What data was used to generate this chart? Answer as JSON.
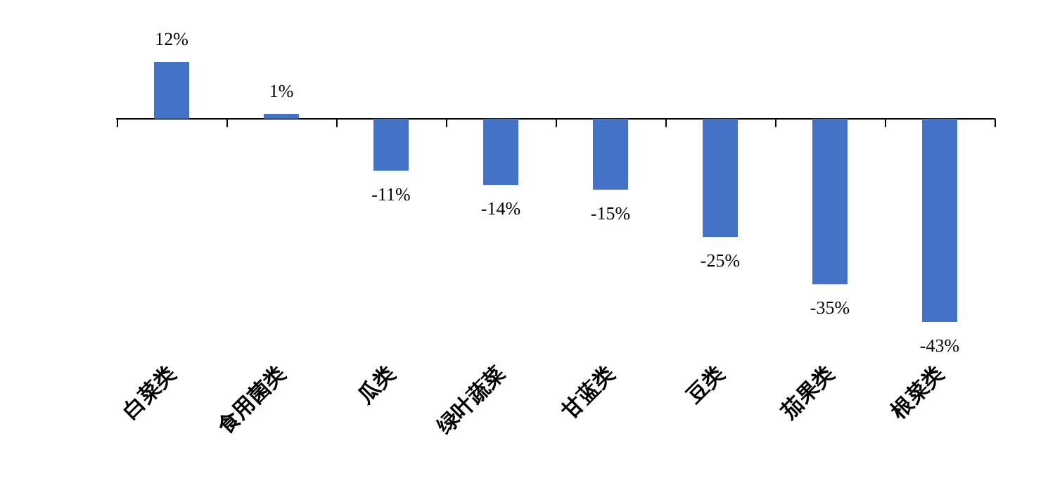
{
  "chart_data": {
    "type": "bar",
    "categories": [
      "白菜类",
      "食用菌类",
      "瓜类",
      "绿叶蔬菜",
      "甘蓝类",
      "豆类",
      "茄果类",
      "根菜类"
    ],
    "values": [
      12,
      1,
      -11,
      -14,
      -15,
      -25,
      -35,
      -43
    ],
    "value_labels": [
      "12%",
      "1%",
      "-11%",
      "-14%",
      "-15%",
      "-25%",
      "-35%",
      "-43%"
    ],
    "color": "#4472c4",
    "grid": false
  }
}
